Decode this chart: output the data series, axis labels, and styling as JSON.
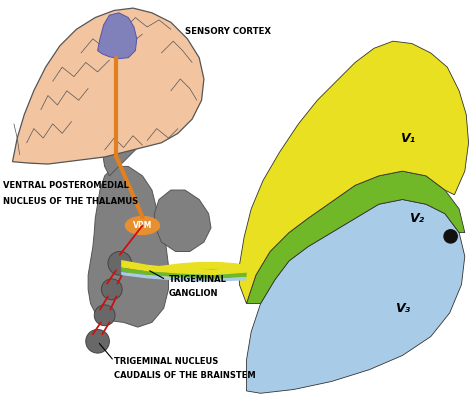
{
  "background_color": "#ffffff",
  "brain_color": "#f2c4a0",
  "brain_edge": "#555555",
  "thalamus_color": "#808080",
  "thalamus_edge": "#555555",
  "vpm_color": "#e89030",
  "vpm_text_color": "#ffffff",
  "vpm_text": "VPM",
  "face_yellow": "#e8e020",
  "face_yellow_edge": "#333333",
  "face_green": "#70b828",
  "face_green_edge": "#333333",
  "face_blue": "#a8cce8",
  "face_blue_edge": "#333333",
  "nerve_orange": "#e08020",
  "nerve_red": "#cc1010",
  "cortex_color": "#8080bb",
  "cortex_edge": "#5555aa",
  "eye_color": "#111111",
  "label_sensory_cortex": "SENSORY CORTEX",
  "label_ventral1": "VENTRAL POSTEROMEDIAL",
  "label_ventral2": "NUCLEUS OF THE THALAMUS",
  "label_ganglion1": "TRIGEMINAL",
  "label_ganglion2": "GANGLION",
  "label_tnc1": "TRIGEMINAL NUCLEUS",
  "label_tnc2": "CAUDALIS OF THE BRAINSTEM",
  "label_v1": "V₁",
  "label_v2": "V₂",
  "label_v3": "V₃",
  "figsize": [
    4.74,
    3.99
  ],
  "dpi": 100
}
